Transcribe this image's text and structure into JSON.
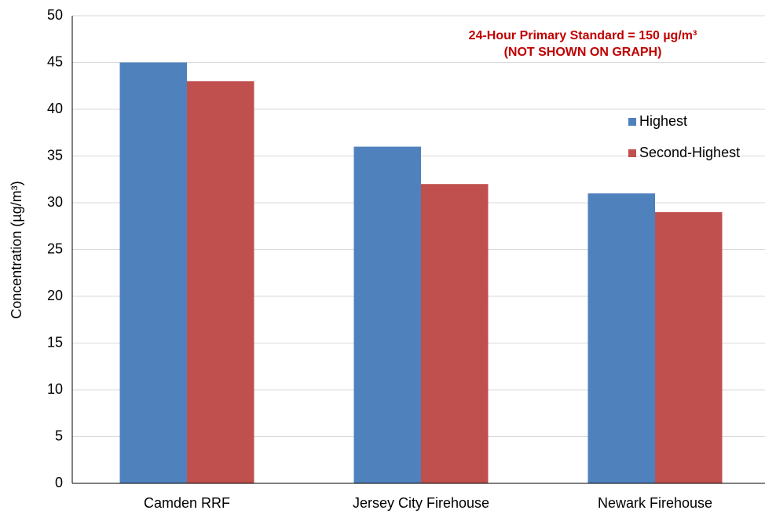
{
  "chart_data": {
    "type": "bar",
    "y_label": "Concentration (µg/m³)",
    "annotation": [
      "24-Hour Primary Standard = 150 µg/m³",
      "(NOT SHOWN ON GRAPH)"
    ],
    "categories": [
      "Camden RRF",
      "Jersey City Firehouse",
      "Newark Firehouse"
    ],
    "series": [
      {
        "name": "Highest",
        "color": "#4f81bd",
        "values": [
          45,
          36,
          31
        ]
      },
      {
        "name": "Second-Highest",
        "color": "#c0504d",
        "values": [
          43,
          32,
          29
        ]
      }
    ],
    "ylim": [
      0,
      50
    ],
    "yticks": [
      0,
      5,
      10,
      15,
      20,
      25,
      30,
      35,
      40,
      45,
      50
    ],
    "grid": true,
    "legend": "right"
  }
}
